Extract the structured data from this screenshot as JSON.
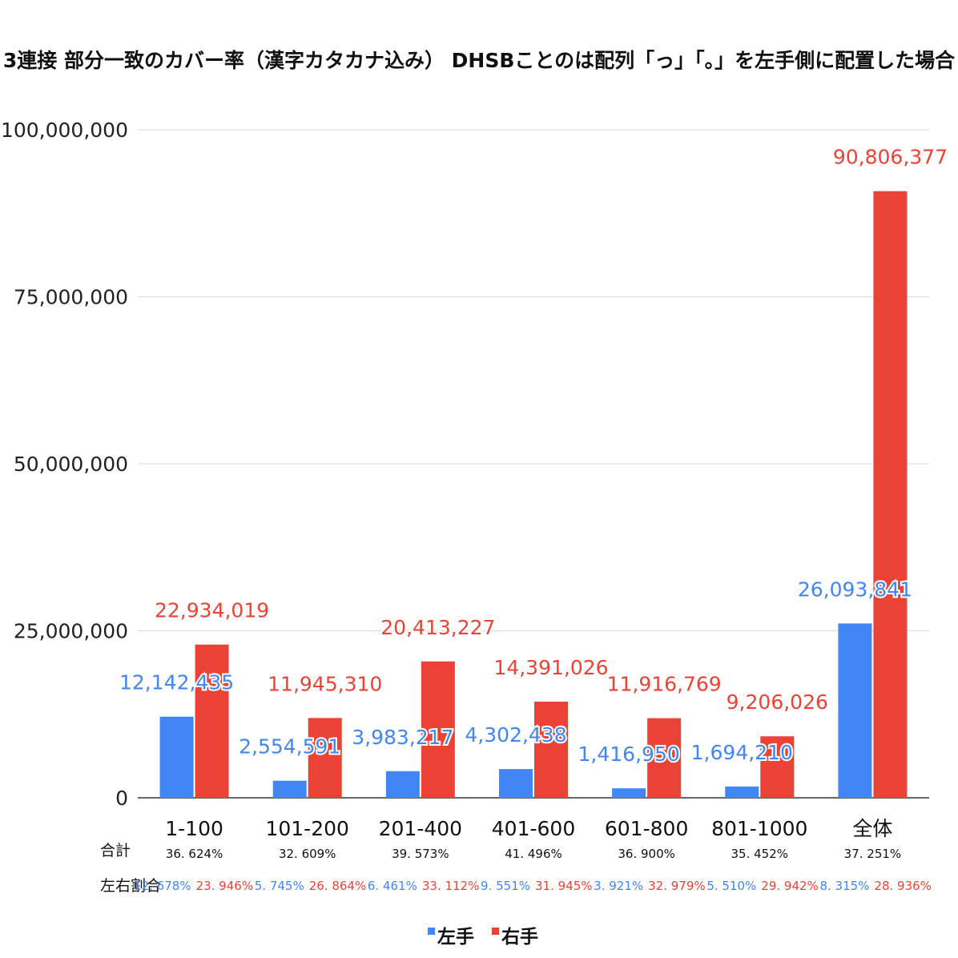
{
  "colors": {
    "left": "#4285f4",
    "right": "#ea4335",
    "grid": "#d9d9d9",
    "axis": "#333333"
  },
  "table_rows": {
    "total_label": "合計",
    "ratio_label": "左右割合"
  },
  "totals": [
    "36. 624%",
    "32. 609%",
    "39. 573%",
    "41. 496%",
    "36. 900%",
    "35. 452%",
    "37. 251%"
  ],
  "ratios_left": [
    "12. 678%",
    "5. 745%",
    "6. 461%",
    "9. 551%",
    "3. 921%",
    "5. 510%",
    "8. 315%"
  ],
  "ratios_right": [
    "23. 946%",
    "26. 864%",
    "33. 112%",
    "31. 945%",
    "32. 979%",
    "29. 942%",
    "28. 936%"
  ],
  "chart_data": {
    "type": "bar",
    "title": "3連接 部分一致のカバー率（漢字カタカナ込み） DHSBことのは配列「っ」「。」を左手側に配置した場合",
    "categories": [
      "1-100",
      "101-200",
      "201-400",
      "401-600",
      "601-800",
      "801-1000",
      "全体"
    ],
    "series": [
      {
        "name": "左手",
        "values": [
          12142435,
          2554591,
          3983217,
          4302438,
          1416950,
          1694210,
          26093841
        ],
        "labels": [
          "12,142,435",
          "2,554,591",
          "3,983,217",
          "4,302,438",
          "1,416,950",
          "1,694,210",
          "26,093,841"
        ]
      },
      {
        "name": "右手",
        "values": [
          22934019,
          11945310,
          20413227,
          14391026,
          11916769,
          9206026,
          90806377
        ],
        "labels": [
          "22,934,019",
          "11,945,310",
          "20,413,227",
          "14,391,026",
          "11,916,769",
          "9,206,026",
          "90,806,377"
        ]
      }
    ],
    "ylim": [
      0,
      100000000
    ],
    "yticks": [
      0,
      25000000,
      50000000,
      75000000,
      100000000
    ],
    "ytick_labels": [
      "0",
      "25,000,000",
      "50,000,000",
      "75,000,000",
      "100,000,000"
    ],
    "grid": true,
    "legend": "bottom-center"
  }
}
